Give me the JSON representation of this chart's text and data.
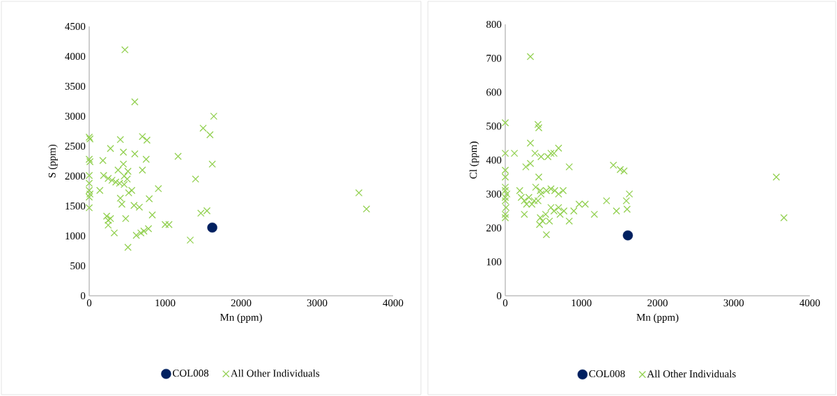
{
  "chart_data": [
    {
      "type": "scatter",
      "xlabel": "Mn (ppm)",
      "ylabel": "S (ppm)",
      "xlim": [
        0,
        4000
      ],
      "xticks": [
        0,
        1000,
        2000,
        3000,
        4000
      ],
      "ylim": [
        0,
        4500
      ],
      "yticks": [
        0,
        500,
        1000,
        1500,
        2000,
        2500,
        3000,
        3500,
        4000,
        4500
      ],
      "legend": "bottom",
      "grid": false,
      "series": [
        {
          "name": "COL008",
          "color": "#002060",
          "marker": "circle",
          "x": [
            1620
          ],
          "values": [
            1140
          ]
        },
        {
          "name": "All Other Individuals",
          "color": "#92d050",
          "marker": "cross",
          "x": [
            470,
            600,
            1640,
            1500,
            1590,
            1620,
            0,
            10,
            700,
            760,
            410,
            280,
            450,
            1170,
            600,
            0,
            10,
            180,
            450,
            750,
            700,
            380,
            510,
            460,
            0,
            190,
            250,
            300,
            350,
            400,
            460,
            500,
            1400,
            0,
            140,
            0,
            560,
            520,
            1550,
            1470,
            910,
            790,
            0,
            10,
            0,
            410,
            430,
            590,
            660,
            830,
            230,
            250,
            280,
            330,
            250,
            480,
            1000,
            1050,
            680,
            720,
            780,
            620,
            1330,
            510,
            3550,
            3650
          ],
          "values": [
            4110,
            3240,
            3000,
            2800,
            2690,
            2200,
            2650,
            2620,
            2660,
            2600,
            2610,
            2460,
            2400,
            2330,
            2370,
            2280,
            2240,
            2260,
            2200,
            2280,
            2100,
            2100,
            2080,
            2000,
            2010,
            2010,
            1960,
            1930,
            1900,
            1880,
            1860,
            1950,
            1950,
            1880,
            1760,
            1760,
            1760,
            1720,
            1420,
            1380,
            1790,
            1620,
            1650,
            1700,
            1470,
            1630,
            1530,
            1510,
            1480,
            1350,
            1330,
            1260,
            1290,
            1050,
            1180,
            1290,
            1190,
            1190,
            1050,
            1080,
            1120,
            1010,
            930,
            810,
            1720,
            1450
          ]
        }
      ]
    },
    {
      "type": "scatter",
      "xlabel": "Mn (ppm)",
      "ylabel": "Cl (ppm)",
      "xlim": [
        0,
        4000
      ],
      "xticks": [
        0,
        1000,
        2000,
        3000,
        4000
      ],
      "ylim": [
        0,
        800
      ],
      "yticks": [
        0,
        100,
        200,
        300,
        400,
        500,
        600,
        700,
        800
      ],
      "legend": "bottom",
      "grid": false,
      "series": [
        {
          "name": "COL008",
          "color": "#002060",
          "marker": "circle",
          "x": [
            1610
          ],
          "values": [
            178
          ]
        },
        {
          "name": "All Other Individuals",
          "color": "#92d050",
          "marker": "cross",
          "x": [
            330,
            0,
            430,
            440,
            330,
            0,
            120,
            390,
            600,
            560,
            700,
            640,
            470,
            0,
            0,
            270,
            330,
            1420,
            1510,
            1560,
            840,
            440,
            3560,
            0,
            0,
            20,
            0,
            0,
            10,
            0,
            0,
            190,
            210,
            250,
            280,
            310,
            350,
            400,
            460,
            470,
            540,
            600,
            650,
            700,
            760,
            380,
            430,
            460,
            490,
            450,
            530,
            580,
            600,
            640,
            700,
            720,
            770,
            840,
            900,
            970,
            1050,
            1170,
            1330,
            1460,
            1590,
            1600,
            1630,
            540,
            250,
            3660
          ],
          "values": [
            705,
            510,
            505,
            495,
            450,
            420,
            420,
            420,
            420,
            410,
            435,
            420,
            410,
            370,
            350,
            380,
            390,
            385,
            372,
            368,
            380,
            350,
            350,
            320,
            310,
            300,
            290,
            280,
            260,
            240,
            230,
            310,
            290,
            280,
            270,
            290,
            270,
            320,
            310,
            300,
            310,
            315,
            310,
            300,
            310,
            280,
            280,
            230,
            220,
            210,
            240,
            220,
            260,
            250,
            260,
            240,
            250,
            220,
            250,
            270,
            270,
            240,
            280,
            250,
            280,
            255,
            300,
            180,
            240,
            230
          ]
        }
      ]
    }
  ]
}
